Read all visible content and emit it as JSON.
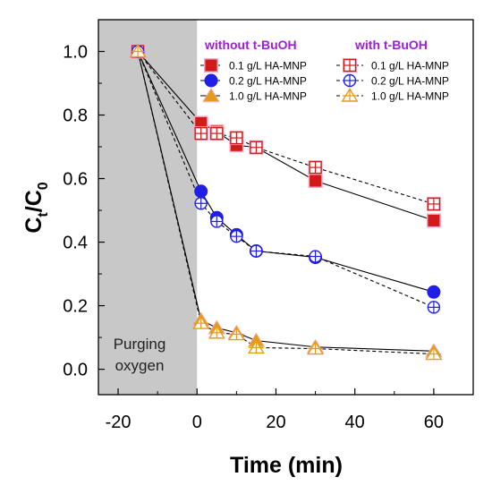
{
  "chart_data": {
    "type": "scatter",
    "xlabel": "Time (min)",
    "ylabel_main": "C",
    "ylabel_sub_t": "t",
    "ylabel_slash": "/C",
    "ylabel_sub_0": "0",
    "xlim": [
      -25,
      70
    ],
    "ylim": [
      -0.08,
      1.1
    ],
    "x_ticks": [
      -20,
      0,
      20,
      40,
      60
    ],
    "y_ticks": [
      0.0,
      0.2,
      0.4,
      0.6,
      0.8,
      1.0
    ],
    "x_tick_labels": [
      "-20",
      "0",
      "20",
      "40",
      "60"
    ],
    "y_tick_labels": [
      "0.0",
      "0.2",
      "0.4",
      "0.6",
      "0.8",
      "1.0"
    ],
    "shaded_region": {
      "x_from": -25,
      "x_to": 0,
      "label_line1": "Purging",
      "label_line2": "oxygen"
    },
    "legend_header_left": "without t-BuOH",
    "legend_header_right": "with t-BuOH",
    "colors": {
      "red": "#d11a1a",
      "blue": "#1f1fe8",
      "orange": "#e39c1b",
      "shade": "#c8c8c8",
      "header": "#9b1fd6",
      "halo": "#f4aaca"
    },
    "series": [
      {
        "name": "0.1 g/L HA-MNP",
        "group": "without",
        "color": "red",
        "marker": "square-filled",
        "line": "solid",
        "x": [
          -15,
          1,
          5,
          10,
          15,
          30,
          60
        ],
        "y": [
          1.0,
          0.775,
          0.748,
          0.705,
          0.698,
          0.593,
          0.468
        ]
      },
      {
        "name": "0.2 g/L HA-MNP",
        "group": "without",
        "color": "blue",
        "marker": "circle-filled",
        "line": "solid",
        "x": [
          -15,
          1,
          5,
          10,
          15,
          30,
          60
        ],
        "y": [
          1.0,
          0.56,
          0.477,
          0.423,
          0.372,
          0.352,
          0.243
        ]
      },
      {
        "name": "1.0 g/L HA-MNP",
        "group": "without",
        "color": "orange",
        "marker": "triangle-filled",
        "line": "solid",
        "x": [
          -15,
          1,
          5,
          10,
          15,
          30,
          60
        ],
        "y": [
          1.0,
          0.155,
          0.13,
          0.115,
          0.09,
          0.07,
          0.057
        ]
      },
      {
        "name": "0.1 g/L HA-MNP",
        "group": "with",
        "color": "red",
        "marker": "square-open",
        "line": "dashed",
        "x": [
          -15,
          1,
          5,
          10,
          15,
          30,
          60
        ],
        "y": [
          1.0,
          0.742,
          0.742,
          0.728,
          0.698,
          0.635,
          0.52
        ]
      },
      {
        "name": "0.2 g/L HA-MNP",
        "group": "with",
        "color": "blue",
        "marker": "circle-open",
        "line": "dashed",
        "x": [
          -15,
          1,
          5,
          10,
          15,
          30,
          60
        ],
        "y": [
          1.0,
          0.522,
          0.465,
          0.418,
          0.372,
          0.355,
          0.195
        ]
      },
      {
        "name": "1.0 g/L HA-MNP",
        "group": "with",
        "color": "orange",
        "marker": "triangle-open",
        "line": "dashed",
        "x": [
          -15,
          1,
          5,
          10,
          15,
          30,
          60
        ],
        "y": [
          1.0,
          0.145,
          0.115,
          0.11,
          0.068,
          0.065,
          0.048
        ]
      }
    ]
  }
}
